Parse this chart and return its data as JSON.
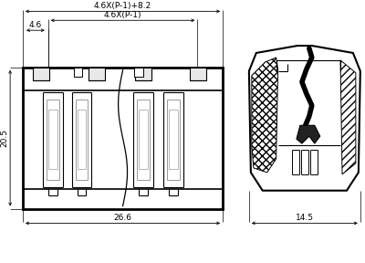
{
  "bg_color": "#ffffff",
  "lc": "#000000",
  "gl": "#999999",
  "annotations": {
    "dim_46x_p1_82": "4.6X(P-1)+8.2",
    "dim_46x_p1": "4.6X(P-1)",
    "dim_46": "4.6",
    "dim_205": "20.5",
    "dim_266": "26.6",
    "dim_145": "14.5"
  },
  "fig_width": 4.0,
  "fig_height": 2.88,
  "dpi": 100
}
